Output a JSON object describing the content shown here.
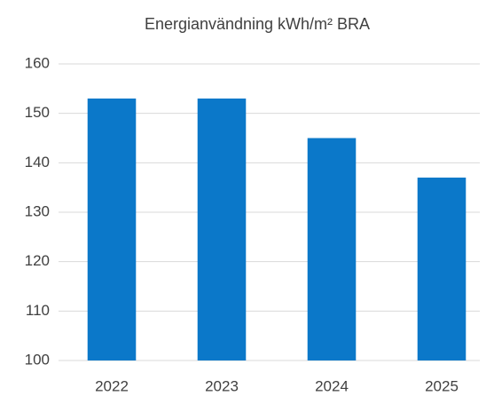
{
  "chart_data": {
    "type": "bar",
    "title": "Energianvändning kWh/m² BRA",
    "categories": [
      "2022",
      "2023",
      "2024",
      "2025"
    ],
    "values": [
      153,
      153,
      145,
      137
    ],
    "color": "#0b78c9",
    "ylim": [
      100,
      160
    ],
    "yticks": [
      100,
      110,
      120,
      130,
      140,
      150,
      160
    ],
    "grid": true
  }
}
